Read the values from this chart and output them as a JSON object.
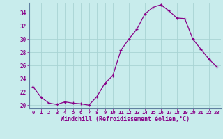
{
  "xlabel": "Windchill (Refroidissement éolien,°C)",
  "background_color": "#c8ecec",
  "line_color": "#880088",
  "marker": "+",
  "grid_color": "#a8d4d4",
  "xlim": [
    -0.5,
    23.5
  ],
  "ylim": [
    19.5,
    35.5
  ],
  "yticks": [
    20,
    22,
    24,
    26,
    28,
    30,
    32,
    34
  ],
  "xticks": [
    0,
    1,
    2,
    3,
    4,
    5,
    6,
    7,
    8,
    9,
    10,
    11,
    12,
    13,
    14,
    15,
    16,
    17,
    18,
    19,
    20,
    21,
    22,
    23
  ],
  "hours": [
    0,
    1,
    2,
    3,
    4,
    5,
    6,
    7,
    8,
    9,
    10,
    11,
    12,
    13,
    14,
    15,
    16,
    17,
    18,
    19,
    20,
    21,
    22,
    23
  ],
  "values": [
    22.8,
    21.2,
    20.3,
    20.1,
    20.5,
    20.3,
    20.2,
    20.0,
    21.3,
    23.3,
    24.5,
    28.3,
    30.0,
    31.5,
    33.8,
    34.8,
    35.2,
    34.3,
    33.2,
    33.1,
    30.0,
    28.5,
    27.0,
    25.8
  ]
}
